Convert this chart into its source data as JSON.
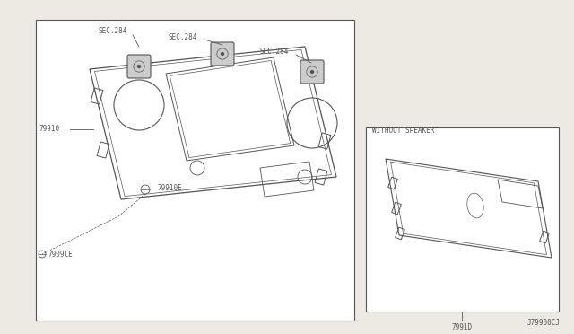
{
  "bg_color": "#ede9e3",
  "line_color": "#555555",
  "title_bottom": "J79900CJ",
  "inset_label": "WITHOUT SPEAKER",
  "inset_part_num": "7991D",
  "label_79910": "79910",
  "label_79910E": "79910E",
  "label_7909lE": "7909lE"
}
